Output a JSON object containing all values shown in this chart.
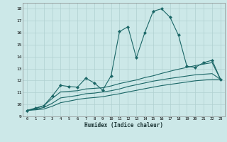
{
  "title": "",
  "xlabel": "Humidex (Indice chaleur)",
  "ylabel": "",
  "bg_color": "#cce8e8",
  "grid_color": "#b0d0d0",
  "line_color": "#1a6666",
  "xlim": [
    -0.5,
    23.5
  ],
  "ylim": [
    9,
    18.5
  ],
  "xticks": [
    0,
    1,
    2,
    3,
    4,
    5,
    6,
    7,
    8,
    9,
    10,
    11,
    12,
    13,
    14,
    15,
    16,
    17,
    18,
    19,
    20,
    21,
    22,
    23
  ],
  "yticks": [
    9,
    10,
    11,
    12,
    13,
    14,
    15,
    16,
    17,
    18
  ],
  "lines": [
    {
      "x": [
        0,
        1,
        2,
        3,
        4,
        5,
        6,
        7,
        8,
        9,
        10,
        11,
        12,
        13,
        14,
        15,
        16,
        17,
        18,
        19,
        20,
        21,
        22,
        23
      ],
      "y": [
        9.5,
        9.7,
        9.9,
        10.7,
        11.6,
        11.5,
        11.45,
        12.2,
        11.8,
        11.2,
        12.4,
        16.1,
        16.5,
        13.9,
        16.0,
        17.8,
        18.0,
        17.3,
        15.8,
        13.2,
        13.1,
        13.5,
        13.7,
        12.1
      ],
      "marker": "D",
      "markersize": 2.2
    },
    {
      "x": [
        0,
        1,
        2,
        3,
        4,
        5,
        6,
        7,
        8,
        9,
        10,
        11,
        12,
        13,
        14,
        15,
        16,
        17,
        18,
        19,
        20,
        21,
        22,
        23
      ],
      "y": [
        9.5,
        9.65,
        9.9,
        10.5,
        11.05,
        11.1,
        11.15,
        11.3,
        11.35,
        11.4,
        11.55,
        11.75,
        11.9,
        12.05,
        12.25,
        12.4,
        12.6,
        12.78,
        12.95,
        13.1,
        13.25,
        13.38,
        13.5,
        12.1
      ],
      "marker": null,
      "markersize": 0
    },
    {
      "x": [
        0,
        1,
        2,
        3,
        4,
        5,
        6,
        7,
        8,
        9,
        10,
        11,
        12,
        13,
        14,
        15,
        16,
        17,
        18,
        19,
        20,
        21,
        22,
        23
      ],
      "y": [
        9.5,
        9.6,
        9.75,
        10.1,
        10.55,
        10.65,
        10.75,
        10.9,
        10.95,
        11.05,
        11.15,
        11.3,
        11.5,
        11.65,
        11.8,
        11.95,
        12.07,
        12.18,
        12.28,
        12.38,
        12.48,
        12.53,
        12.58,
        12.1
      ],
      "marker": null,
      "markersize": 0
    },
    {
      "x": [
        0,
        1,
        2,
        3,
        4,
        5,
        6,
        7,
        8,
        9,
        10,
        11,
        12,
        13,
        14,
        15,
        16,
        17,
        18,
        19,
        20,
        21,
        22,
        23
      ],
      "y": [
        9.5,
        9.55,
        9.62,
        9.85,
        10.15,
        10.28,
        10.42,
        10.52,
        10.58,
        10.65,
        10.78,
        10.9,
        11.05,
        11.18,
        11.32,
        11.45,
        11.58,
        11.68,
        11.78,
        11.88,
        11.98,
        12.04,
        12.1,
        12.1
      ],
      "marker": null,
      "markersize": 0
    }
  ]
}
